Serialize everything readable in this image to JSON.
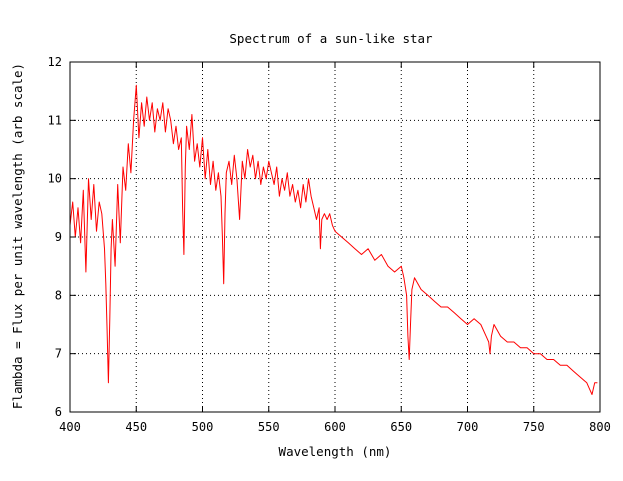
{
  "chart_data": {
    "type": "line",
    "title": "Spectrum of a sun-like star",
    "xlabel": "Wavelength (nm)",
    "ylabel": "Flambda = Flux per unit wavelength (arb scale)",
    "xlim": [
      400,
      800
    ],
    "ylim": [
      6,
      12
    ],
    "x_ticks": [
      400,
      450,
      500,
      550,
      600,
      650,
      700,
      750,
      800
    ],
    "y_ticks": [
      6,
      7,
      8,
      9,
      10,
      11,
      12
    ],
    "grid": true,
    "grid_style": "dotted",
    "legend": "none",
    "series": [
      {
        "color": "#ff0000",
        "x": [
          400,
          402,
          404,
          406,
          408,
          410,
          412,
          414,
          416,
          418,
          420,
          422,
          424,
          426,
          427,
          428,
          429,
          430,
          431,
          432,
          434,
          436,
          438,
          440,
          442,
          444,
          446,
          448,
          450,
          452,
          454,
          456,
          458,
          460,
          462,
          464,
          466,
          468,
          470,
          472,
          474,
          476,
          478,
          480,
          482,
          484,
          485,
          486,
          487,
          488,
          490,
          492,
          494,
          496,
          498,
          500,
          502,
          504,
          506,
          508,
          510,
          512,
          514,
          515,
          516,
          517,
          518,
          520,
          522,
          524,
          526,
          528,
          530,
          532,
          534,
          536,
          538,
          540,
          542,
          544,
          546,
          548,
          550,
          552,
          554,
          556,
          558,
          560,
          562,
          564,
          566,
          568,
          570,
          572,
          574,
          576,
          578,
          580,
          582,
          584,
          586,
          588,
          589,
          590,
          592,
          594,
          596,
          598,
          600,
          605,
          610,
          615,
          620,
          625,
          630,
          635,
          640,
          645,
          650,
          652,
          654,
          655,
          656,
          657,
          658,
          660,
          665,
          670,
          675,
          680,
          685,
          690,
          695,
          700,
          705,
          710,
          714,
          716,
          717,
          718,
          720,
          725,
          730,
          735,
          740,
          745,
          750,
          755,
          760,
          765,
          770,
          775,
          780,
          785,
          790,
          792,
          794,
          796,
          798
        ],
        "y": [
          9.2,
          9.6,
          9.0,
          9.5,
          8.9,
          9.8,
          8.4,
          10.0,
          9.3,
          9.9,
          9.1,
          9.6,
          9.4,
          8.8,
          8.2,
          7.4,
          6.5,
          7.6,
          8.8,
          9.3,
          8.5,
          9.9,
          8.9,
          10.2,
          9.8,
          10.6,
          10.1,
          11.0,
          11.6,
          10.7,
          11.3,
          10.9,
          11.4,
          11.0,
          11.3,
          10.8,
          11.2,
          11.0,
          11.3,
          10.8,
          11.2,
          11.0,
          10.6,
          10.9,
          10.5,
          10.7,
          9.5,
          8.7,
          10.2,
          10.9,
          10.5,
          11.1,
          10.3,
          10.6,
          10.2,
          10.7,
          10.0,
          10.5,
          9.9,
          10.3,
          9.8,
          10.1,
          9.7,
          9.0,
          8.2,
          9.4,
          10.1,
          10.3,
          9.9,
          10.4,
          10.0,
          9.3,
          10.3,
          10.0,
          10.5,
          10.2,
          10.4,
          10.0,
          10.3,
          9.9,
          10.2,
          10.0,
          10.3,
          10.1,
          9.9,
          10.2,
          9.7,
          10.0,
          9.8,
          10.1,
          9.7,
          9.9,
          9.6,
          9.8,
          9.5,
          9.9,
          9.6,
          10.0,
          9.7,
          9.5,
          9.3,
          9.5,
          8.8,
          9.3,
          9.4,
          9.3,
          9.4,
          9.2,
          9.1,
          9.0,
          8.9,
          8.8,
          8.7,
          8.8,
          8.6,
          8.7,
          8.5,
          8.4,
          8.5,
          8.3,
          8.0,
          7.3,
          6.9,
          7.5,
          8.1,
          8.3,
          8.1,
          8.0,
          7.9,
          7.8,
          7.8,
          7.7,
          7.6,
          7.5,
          7.6,
          7.5,
          7.3,
          7.2,
          7.0,
          7.3,
          7.5,
          7.3,
          7.2,
          7.2,
          7.1,
          7.1,
          7.0,
          7.0,
          6.9,
          6.9,
          6.8,
          6.8,
          6.7,
          6.6,
          6.5,
          6.4,
          6.3,
          6.5,
          6.5
        ]
      }
    ]
  }
}
